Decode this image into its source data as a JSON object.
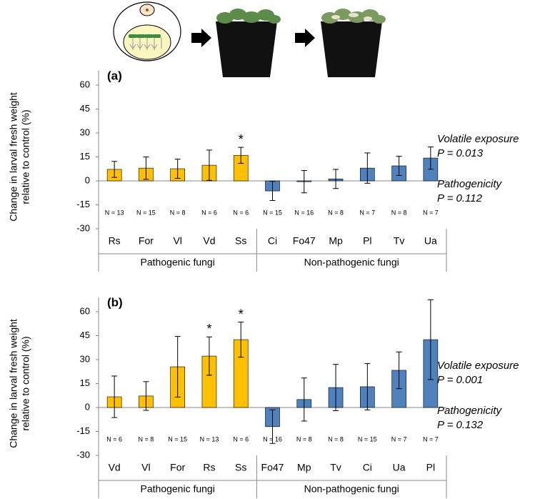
{
  "chart_data": [
    {
      "type": "bar",
      "title": "(a)",
      "y_label": [
        "Change in larval fresh weight",
        "relative to control (%)"
      ],
      "categories": [
        "Rs",
        "For",
        "Vl",
        "Vd",
        "Ss",
        "Ci",
        "Fo47",
        "Mp",
        "Pl",
        "Tv",
        "Ua"
      ],
      "series": [
        {
          "name": "Pathogenic fungi",
          "color": "#ffc000",
          "values": [
            7.2,
            8,
            7.6,
            9.8,
            16,
            null,
            null,
            null,
            null,
            null,
            null
          ],
          "errors": [
            5,
            7,
            6,
            9.5,
            5,
            null,
            null,
            null,
            null,
            null,
            null
          ]
        },
        {
          "name": "Non-pathogenic fungi",
          "color": "#4f81bd",
          "values": [
            null,
            null,
            null,
            null,
            null,
            -6.3,
            -0.5,
            1.2,
            8,
            9.4,
            14.3
          ],
          "errors": [
            null,
            null,
            null,
            null,
            null,
            6,
            7,
            6,
            9.5,
            6,
            7
          ]
        }
      ],
      "n_labels": [
        "N = 13",
        "N = 15",
        "N = 8",
        "N = 6",
        "N = 6",
        "N = 15",
        "N = 16",
        "N = 8",
        "N = 7",
        "N = 8",
        "N = 7"
      ],
      "markers": [
        null,
        null,
        null,
        null,
        "*",
        null,
        null,
        null,
        null,
        null,
        null
      ],
      "annotations": [
        "Volatile exposure",
        "P = 0.013",
        "Pathogenicity",
        "P = 0.112"
      ],
      "ylim": [
        -30,
        60
      ],
      "yticks": [
        -30,
        -15,
        0,
        15,
        30,
        45,
        60
      ]
    },
    {
      "type": "bar",
      "title": "(b)",
      "y_label": [
        "Change in larval fresh weight",
        "relative to control (%)"
      ],
      "categories": [
        "Vd",
        "Vl",
        "For",
        "Rs",
        "Ss",
        "Fo47",
        "Mp",
        "Tv",
        "Ci",
        "Ua",
        "Pl"
      ],
      "series": [
        {
          "name": "Pathogenic fungi",
          "color": "#ffc000",
          "values": [
            6.7,
            7.2,
            25.5,
            32.2,
            42.5,
            null,
            null,
            null,
            null,
            null,
            null
          ],
          "errors": [
            13,
            9,
            19,
            12,
            11,
            null,
            null,
            null,
            null,
            null,
            null
          ]
        },
        {
          "name": "Non-pathogenic fungi",
          "color": "#4f81bd",
          "values": [
            null,
            null,
            null,
            null,
            null,
            -12,
            5,
            12.5,
            13,
            23.3,
            42.5
          ],
          "errors": [
            null,
            null,
            null,
            null,
            null,
            10.5,
            13.5,
            14.5,
            14.5,
            11.5,
            25
          ]
        }
      ],
      "n_labels": [
        "N = 6",
        "N = 8",
        "N = 15",
        "N = 13",
        "N = 6",
        "N = 16",
        "N = 8",
        "N = 8",
        "N = 15",
        "N = 7",
        "N = 7"
      ],
      "markers": [
        null,
        null,
        null,
        "*",
        "*",
        null,
        null,
        null,
        null,
        null,
        null
      ],
      "annotations": [
        "Volatile exposure",
        "P = 0.001",
        "Pathogenicity",
        "P = 0.132"
      ],
      "ylim": [
        -30,
        60
      ],
      "yticks": [
        -30,
        -15,
        0,
        15,
        30,
        45,
        60
      ]
    }
  ]
}
